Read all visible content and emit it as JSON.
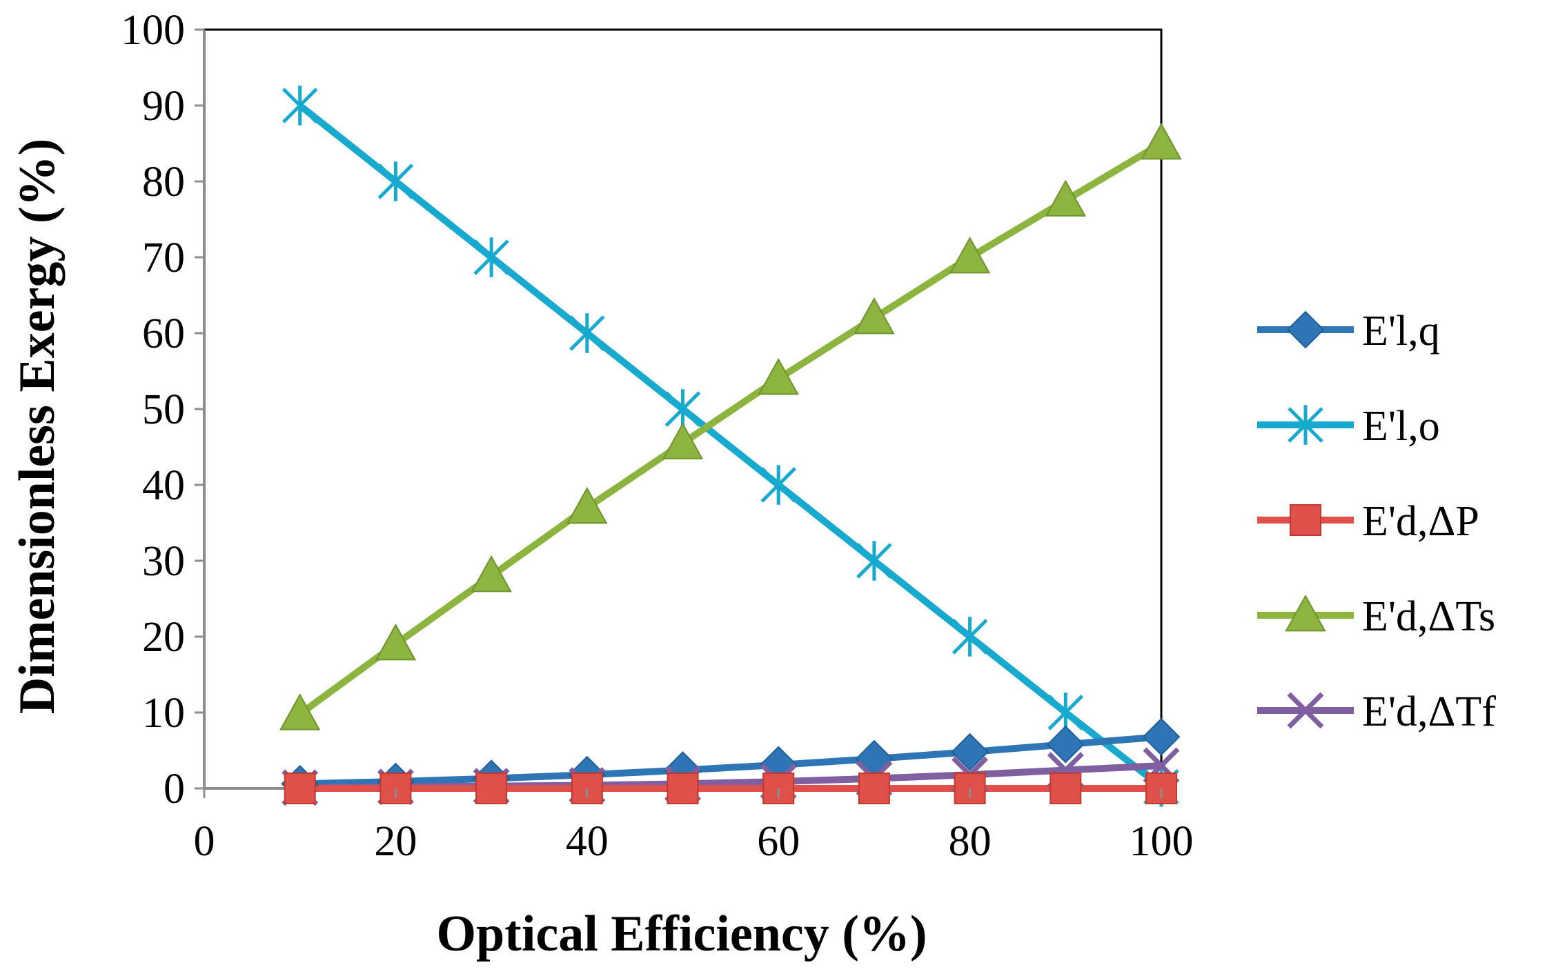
{
  "chart_data": {
    "type": "line",
    "title": "",
    "xlabel": "Optical Efficiency (%)",
    "ylabel": "Dimensionless Exergy (%)",
    "xlim": [
      0,
      100
    ],
    "ylim": [
      0,
      100
    ],
    "xticks": [
      0,
      20,
      40,
      60,
      80,
      100
    ],
    "yticks": [
      0,
      10,
      20,
      30,
      40,
      50,
      60,
      70,
      80,
      90,
      100
    ],
    "grid": false,
    "legend_position": "right",
    "x": [
      10,
      20,
      30,
      40,
      50,
      60,
      70,
      80,
      90,
      100
    ],
    "series": [
      {
        "name": "E'l,q",
        "marker": "diamond",
        "color": "#2E75B6",
        "values": [
          0.6,
          0.9,
          1.3,
          1.8,
          2.4,
          3.1,
          3.9,
          4.8,
          5.8,
          6.8
        ]
      },
      {
        "name": "E'l,o",
        "marker": "asterisk",
        "color": "#17A9CE",
        "values": [
          90,
          80,
          70,
          60,
          50,
          40,
          30,
          20,
          10,
          0.2
        ]
      },
      {
        "name": "E'd,ΔP",
        "marker": "square",
        "color": "#E0504A",
        "values": [
          0,
          0,
          0,
          0,
          0,
          0,
          0,
          0,
          0,
          0
        ]
      },
      {
        "name": "E'd,ΔTs",
        "marker": "triangle",
        "color": "#8DB43E",
        "values": [
          9.8,
          19,
          28,
          37,
          45.5,
          54,
          62,
          70,
          77.5,
          85
        ]
      },
      {
        "name": "E'd,ΔTf",
        "marker": "x",
        "color": "#7F5FA0",
        "values": [
          0.1,
          0.2,
          0.3,
          0.4,
          0.6,
          0.9,
          1.3,
          1.8,
          2.4,
          3.0
        ]
      }
    ]
  }
}
